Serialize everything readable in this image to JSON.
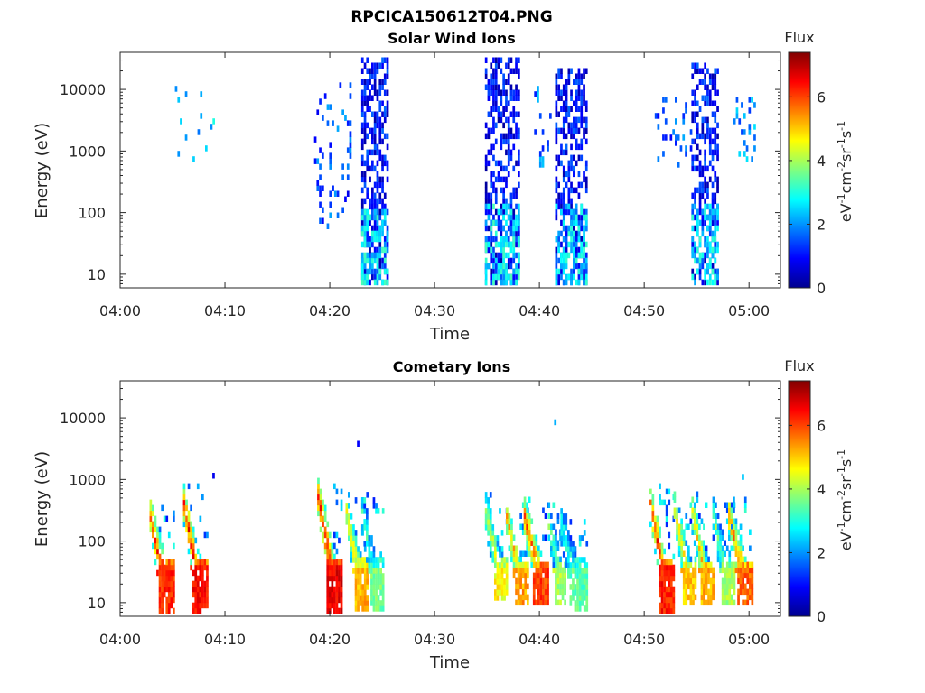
{
  "figure": {
    "title": "RPCICA150612T04.PNG"
  },
  "chart_data": [
    {
      "type": "heatmap",
      "title": "Solar Wind Ions",
      "xlabel": "Time",
      "ylabel": "Energy (eV)",
      "x_ticks": [
        "04:00",
        "04:10",
        "04:20",
        "04:30",
        "04:40",
        "04:50",
        "05:00"
      ],
      "x_range_minutes": [
        0,
        63
      ],
      "y_scale": "log",
      "y_ticks": [
        "10",
        "100",
        "1000",
        "10000"
      ],
      "y_range": [
        6,
        40000
      ],
      "colorbar": {
        "title": "Flux",
        "label": "eV-1cm-2sr-1s-1",
        "ticks": [
          "0",
          "2",
          "4",
          "6"
        ],
        "range": [
          0,
          7.4
        ],
        "colormap": "jet"
      },
      "bursts": [
        {
          "t_start": 4.5,
          "t_end": 9.0,
          "e_min": 600,
          "e_max": 12000,
          "flux": 2.3,
          "density": 0.06
        },
        {
          "t_start": 18.5,
          "t_end": 22.0,
          "e_min": 60,
          "e_max": 12000,
          "flux": 1.5,
          "density": 0.12
        },
        {
          "t_start": 23.0,
          "t_end": 25.5,
          "e_min": 6,
          "e_max": 30000,
          "flux": 1.0,
          "density": 0.55
        },
        {
          "t_start": 23.0,
          "t_end": 25.5,
          "e_min": 6,
          "e_max": 120,
          "flux": 2.6,
          "density": 0.5
        },
        {
          "t_start": 34.8,
          "t_end": 38.0,
          "e_min": 6,
          "e_max": 30000,
          "flux": 0.9,
          "density": 0.55
        },
        {
          "t_start": 34.8,
          "t_end": 38.0,
          "e_min": 6,
          "e_max": 150,
          "flux": 2.6,
          "density": 0.5
        },
        {
          "t_start": 39.5,
          "t_end": 41.0,
          "e_min": 400,
          "e_max": 12000,
          "flux": 1.8,
          "density": 0.12
        },
        {
          "t_start": 41.5,
          "t_end": 44.5,
          "e_min": 6,
          "e_max": 20000,
          "flux": 1.0,
          "density": 0.5
        },
        {
          "t_start": 41.5,
          "t_end": 44.5,
          "e_min": 6,
          "e_max": 150,
          "flux": 2.5,
          "density": 0.45
        },
        {
          "t_start": 51.0,
          "t_end": 54.5,
          "e_min": 600,
          "e_max": 8000,
          "flux": 1.6,
          "density": 0.12
        },
        {
          "t_start": 54.5,
          "t_end": 57.0,
          "e_min": 6,
          "e_max": 25000,
          "flux": 1.0,
          "density": 0.5
        },
        {
          "t_start": 54.5,
          "t_end": 57.0,
          "e_min": 6,
          "e_max": 150,
          "flux": 2.5,
          "density": 0.45
        },
        {
          "t_start": 58.5,
          "t_end": 60.5,
          "e_min": 600,
          "e_max": 8000,
          "flux": 1.9,
          "density": 0.15
        }
      ]
    },
    {
      "type": "heatmap",
      "title": "Cometary Ions",
      "xlabel": "Time",
      "ylabel": "Energy (eV)",
      "x_ticks": [
        "04:00",
        "04:10",
        "04:20",
        "04:30",
        "04:40",
        "04:50",
        "05:00"
      ],
      "x_range_minutes": [
        0,
        63
      ],
      "y_scale": "log",
      "y_ticks": [
        "10",
        "100",
        "1000",
        "10000"
      ],
      "y_range": [
        6,
        40000
      ],
      "colorbar": {
        "title": "Flux",
        "label": "eV-1cm-2sr-1s-1",
        "ticks": [
          "0",
          "2",
          "4",
          "6"
        ],
        "range": [
          0,
          7.4
        ],
        "colormap": "jet"
      },
      "arcs": [
        {
          "t_start": 2.8,
          "t_end": 5.0,
          "e_top": 250,
          "e_bottom": 6,
          "flux": 5.8
        },
        {
          "t_start": 6.0,
          "t_end": 8.2,
          "e_top": 400,
          "e_bottom": 6,
          "flux": 6.0
        },
        {
          "t_start": 18.8,
          "t_end": 21.2,
          "e_top": 500,
          "e_bottom": 6,
          "flux": 6.2
        },
        {
          "t_start": 21.5,
          "t_end": 23.5,
          "e_top": 300,
          "e_bottom": 8,
          "flux": 4.8
        },
        {
          "t_start": 23.0,
          "t_end": 25.0,
          "e_top": 250,
          "e_bottom": 8,
          "flux": 3.2
        },
        {
          "t_start": 34.8,
          "t_end": 36.8,
          "e_top": 300,
          "e_bottom": 12,
          "flux": 4.2
        },
        {
          "t_start": 36.8,
          "t_end": 38.8,
          "e_top": 250,
          "e_bottom": 10,
          "flux": 4.9
        },
        {
          "t_start": 38.5,
          "t_end": 40.8,
          "e_top": 250,
          "e_bottom": 10,
          "flux": 5.6
        },
        {
          "t_start": 40.8,
          "t_end": 42.5,
          "e_top": 200,
          "e_bottom": 10,
          "flux": 3.6
        },
        {
          "t_start": 42.0,
          "t_end": 44.5,
          "e_top": 180,
          "e_bottom": 8,
          "flux": 3.0
        },
        {
          "t_start": 50.5,
          "t_end": 52.8,
          "e_top": 400,
          "e_bottom": 6,
          "flux": 5.9
        },
        {
          "t_start": 52.8,
          "t_end": 54.8,
          "e_top": 350,
          "e_bottom": 10,
          "flux": 4.6
        },
        {
          "t_start": 54.5,
          "t_end": 56.5,
          "e_top": 300,
          "e_bottom": 10,
          "flux": 4.8
        },
        {
          "t_start": 56.5,
          "t_end": 58.5,
          "e_top": 250,
          "e_bottom": 10,
          "flux": 3.6
        },
        {
          "t_start": 58.0,
          "t_end": 60.2,
          "e_top": 250,
          "e_bottom": 10,
          "flux": 5.4
        }
      ],
      "sparse_points": [
        {
          "t": 22.6,
          "e": 3800,
          "flux": 0.9
        },
        {
          "t": 41.4,
          "e": 8500,
          "flux": 2.2
        },
        {
          "t": 8.8,
          "e": 1150,
          "flux": 0.8
        },
        {
          "t": 59.3,
          "e": 1100,
          "flux": 2.4
        }
      ]
    }
  ]
}
